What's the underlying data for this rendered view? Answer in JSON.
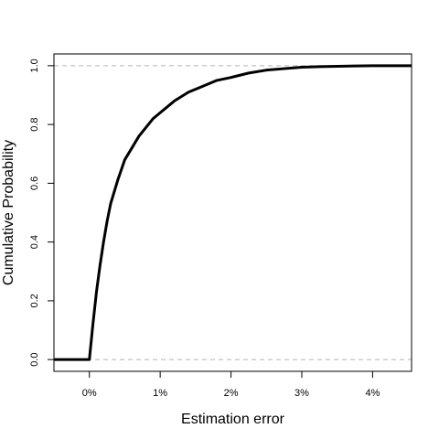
{
  "chart_data": {
    "type": "line",
    "title": "",
    "xlabel": "Estimation error",
    "ylabel": "Cumulative Probability",
    "xlim": [
      -0.5,
      4.55
    ],
    "ylim": [
      -0.04,
      1.04
    ],
    "x_ticks": [
      {
        "value": 0,
        "label": "0%"
      },
      {
        "value": 1,
        "label": "1%"
      },
      {
        "value": 2,
        "label": "2%"
      },
      {
        "value": 3,
        "label": "3%"
      },
      {
        "value": 4,
        "label": "4%"
      }
    ],
    "y_ticks": [
      {
        "value": 0.0,
        "label": "0.0"
      },
      {
        "value": 0.2,
        "label": "0.2"
      },
      {
        "value": 0.4,
        "label": "0.4"
      },
      {
        "value": 0.6,
        "label": "0.6"
      },
      {
        "value": 0.8,
        "label": "0.8"
      },
      {
        "value": 1.0,
        "label": "1.0"
      }
    ],
    "reference_lines": [
      0,
      1
    ],
    "grid": false,
    "series": [
      {
        "x": [
          -0.5,
          0.0,
          0.05,
          0.1,
          0.15,
          0.2,
          0.25,
          0.3,
          0.4,
          0.5,
          0.6,
          0.7,
          0.8,
          0.9,
          1.0,
          1.2,
          1.4,
          1.6,
          1.8,
          2.0,
          2.25,
          2.5,
          2.75,
          3.0,
          3.25,
          3.5,
          3.75,
          4.0,
          4.55
        ],
        "y": [
          0.0,
          0.0,
          0.12,
          0.23,
          0.32,
          0.4,
          0.47,
          0.53,
          0.61,
          0.68,
          0.72,
          0.76,
          0.79,
          0.82,
          0.84,
          0.88,
          0.91,
          0.93,
          0.95,
          0.96,
          0.975,
          0.985,
          0.99,
          0.995,
          0.997,
          0.998,
          0.999,
          1.0,
          1.0
        ]
      }
    ]
  }
}
